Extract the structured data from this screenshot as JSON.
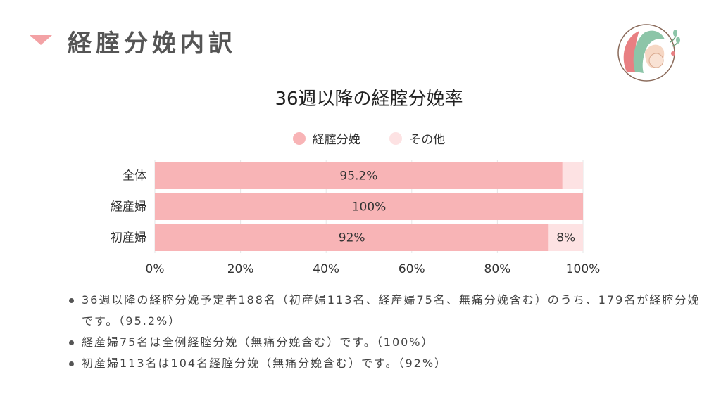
{
  "header": {
    "title": "経腟分娩内訳"
  },
  "icons": {
    "marker": "triangle-down-icon",
    "logo": "mother-and-baby-logo-icon"
  },
  "colors": {
    "primary": "#f8b4b6",
    "secondary": "#fde2e3",
    "accent": "#f3a2a5"
  },
  "chart_data": {
    "type": "bar",
    "orientation": "horizontal",
    "stacked": true,
    "title": "36週以降の経腟分娩率",
    "categories": [
      "全体",
      "経産婦",
      "初産婦"
    ],
    "series": [
      {
        "name": "経腟分娩",
        "values": [
          95.2,
          100,
          92
        ],
        "labels": [
          "95.2%",
          "100%",
          "92%"
        ]
      },
      {
        "name": "その他",
        "values": [
          4.8,
          0,
          8
        ],
        "labels": [
          "",
          "",
          "8%"
        ]
      }
    ],
    "xlim": [
      0,
      100
    ],
    "x_ticks": [
      "0%",
      "20%",
      "40%",
      "60%",
      "80%",
      "100%"
    ],
    "grid": true,
    "legend_position": "top"
  },
  "bullets": [
    "36週以降の経腟分娩予定者188名（初産婦113名、経産婦75名、無痛分娩含む）のうち、179名が経腟分娩です。（95.2%）",
    "経産婦75名は全例経腟分娩（無痛分娩含む）です。（100%）",
    "初産婦113名は104名経腟分娩（無痛分娩含む）です。（92%）"
  ]
}
